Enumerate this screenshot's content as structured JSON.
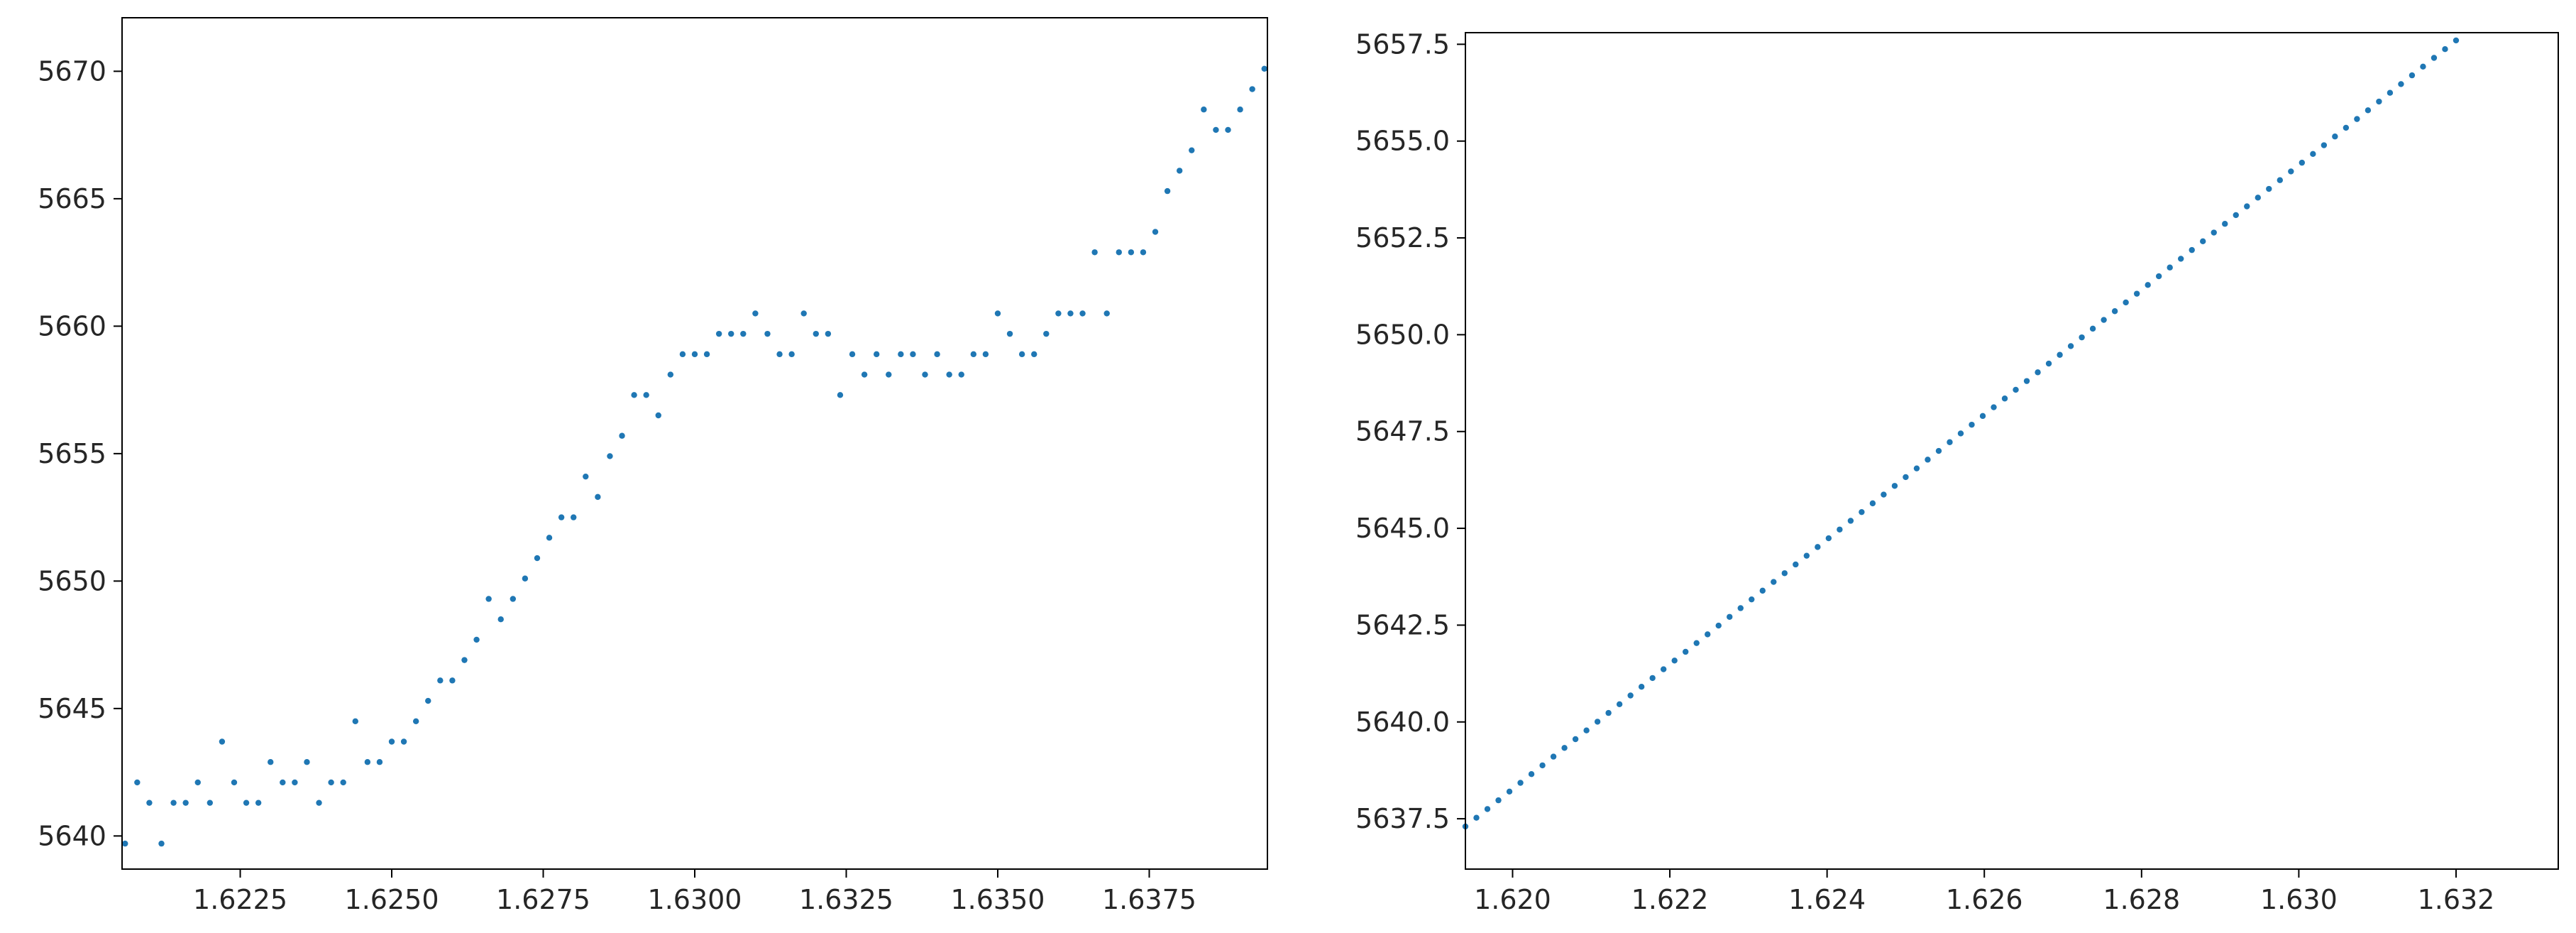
{
  "chart_data": [
    {
      "type": "scatter",
      "title": "",
      "xlabel": "",
      "ylabel": "",
      "grid": false,
      "legend": "none",
      "xlim": [
        1.62055,
        1.63945
      ],
      "ylim": [
        5638.7,
        5672.1
      ],
      "xticks": [
        1.6225,
        1.625,
        1.6275,
        1.63,
        1.6325,
        1.635,
        1.6375
      ],
      "xtick_labels": [
        "1.6225",
        "1.6250",
        "1.6275",
        "1.6300",
        "1.6325",
        "1.6350",
        "1.6375"
      ],
      "yticks": [
        5640,
        5645,
        5650,
        5655,
        5660,
        5665,
        5670
      ],
      "ytick_labels": [
        "5640",
        "5645",
        "5650",
        "5655",
        "5660",
        "5665",
        "5670"
      ],
      "series": [
        {
          "color": "#1f77b4",
          "x": [
            1.6206,
            1.6208,
            1.621,
            1.6212,
            1.6214,
            1.6216,
            1.6218,
            1.622,
            1.6222,
            1.6224,
            1.6226,
            1.6228,
            1.623,
            1.6232,
            1.6234,
            1.6236,
            1.6238,
            1.624,
            1.6242,
            1.6244,
            1.6246,
            1.6248,
            1.625,
            1.6252,
            1.6254,
            1.6256,
            1.6258,
            1.626,
            1.6262,
            1.6264,
            1.6266,
            1.6268,
            1.627,
            1.6272,
            1.6274,
            1.6276,
            1.6278,
            1.628,
            1.6282,
            1.6284,
            1.6286,
            1.6288,
            1.629,
            1.6292,
            1.6294,
            1.6296,
            1.6298,
            1.63,
            1.6302,
            1.6304,
            1.6306,
            1.6308,
            1.631,
            1.6312,
            1.6314,
            1.6316,
            1.6318,
            1.632,
            1.6322,
            1.6324,
            1.6326,
            1.6328,
            1.633,
            1.6332,
            1.6334,
            1.6336,
            1.6338,
            1.634,
            1.6342,
            1.6344,
            1.6346,
            1.6348,
            1.635,
            1.6352,
            1.6354,
            1.6356,
            1.6358,
            1.636,
            1.6362,
            1.6364,
            1.6366,
            1.6368,
            1.637,
            1.6372,
            1.6374,
            1.6376,
            1.6378,
            1.638,
            1.6382,
            1.6384,
            1.6386,
            1.6388,
            1.639,
            1.6392,
            1.6394
          ],
          "y": [
            5639.7,
            5642.1,
            5641.3,
            5639.7,
            5641.3,
            5641.3,
            5642.1,
            5641.3,
            5643.7,
            5642.1,
            5641.3,
            5641.3,
            5642.9,
            5642.1,
            5642.1,
            5642.9,
            5641.3,
            5642.1,
            5642.1,
            5644.5,
            5642.9,
            5642.9,
            5643.7,
            5643.7,
            5644.5,
            5645.3,
            5646.1,
            5646.1,
            5646.9,
            5647.7,
            5649.3,
            5648.5,
            5649.3,
            5650.1,
            5650.9,
            5651.7,
            5652.5,
            5652.5,
            5654.1,
            5653.3,
            5654.9,
            5655.7,
            5657.3,
            5657.3,
            5656.5,
            5658.1,
            5658.9,
            5658.9,
            5658.9,
            5659.7,
            5659.7,
            5659.7,
            5660.5,
            5659.7,
            5658.9,
            5658.9,
            5660.5,
            5659.7,
            5659.7,
            5657.3,
            5658.9,
            5658.1,
            5658.9,
            5658.1,
            5658.9,
            5658.9,
            5658.1,
            5658.9,
            5658.1,
            5658.1,
            5658.9,
            5658.9,
            5660.5,
            5659.7,
            5658.9,
            5658.9,
            5659.7,
            5660.5,
            5660.5,
            5660.5,
            5662.9,
            5660.5,
            5662.9,
            5662.9,
            5662.9,
            5663.7,
            5665.3,
            5666.1,
            5666.9,
            5668.5,
            5667.7,
            5667.7,
            5668.5,
            5669.3,
            5670.1
          ]
        }
      ]
    },
    {
      "type": "scatter",
      "title": "",
      "xlabel": "",
      "ylabel": "",
      "grid": false,
      "legend": "none",
      "xlim": [
        1.6194,
        1.6333
      ],
      "ylim": [
        5636.2,
        5657.8
      ],
      "xticks": [
        1.62,
        1.622,
        1.624,
        1.626,
        1.628,
        1.63,
        1.632
      ],
      "xtick_labels": [
        "1.620",
        "1.622",
        "1.624",
        "1.626",
        "1.628",
        "1.630",
        "1.632"
      ],
      "yticks": [
        5637.5,
        5640.0,
        5642.5,
        5645.0,
        5647.5,
        5650.0,
        5652.5,
        5655.0,
        5657.5
      ],
      "ytick_labels": [
        "5637.5",
        "5640.0",
        "5642.5",
        "5645.0",
        "5647.5",
        "5650.0",
        "5652.5",
        "5655.0",
        "5657.5"
      ],
      "series": [
        {
          "color": "#1f77b4",
          "line": {
            "x_start": 1.6194,
            "x_end": 1.632,
            "y_start": 5637.3,
            "y_end": 5657.6,
            "points": 91
          }
        }
      ]
    }
  ]
}
